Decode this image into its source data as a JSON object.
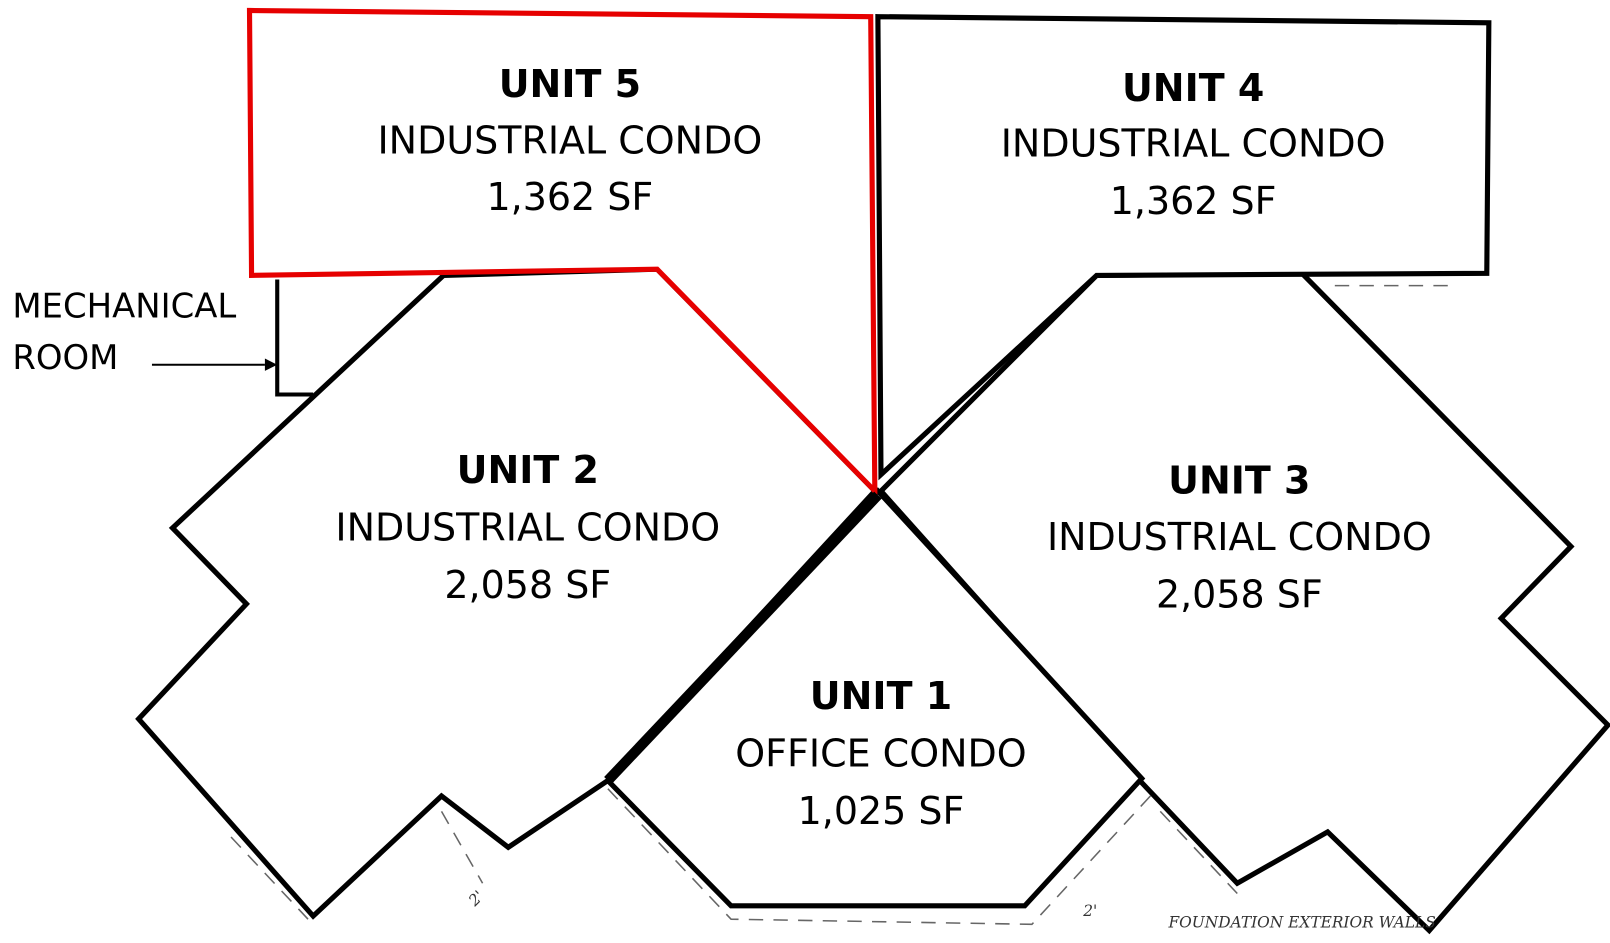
{
  "units": [
    {
      "name": "UNIT 5",
      "use": "INDUSTRIAL CONDO",
      "area": "1,362 SF"
    },
    {
      "name": "UNIT 4",
      "use": "INDUSTRIAL CONDO",
      "area": "1,362 SF"
    },
    {
      "name": "UNIT 2",
      "use": "INDUSTRIAL CONDO",
      "area": "2,058 SF"
    },
    {
      "name": "UNIT 3",
      "use": "INDUSTRIAL CONDO",
      "area": "2,058 SF"
    },
    {
      "name": "UNIT 1",
      "use": "OFFICE CONDO",
      "area": "1,025 SF"
    }
  ],
  "mechanical_room": {
    "lines": [
      "MECHANICAL",
      "ROOM"
    ]
  },
  "annotations": [
    "2'",
    "2'",
    "FOUNDATION EXTERIOR WALLS"
  ]
}
